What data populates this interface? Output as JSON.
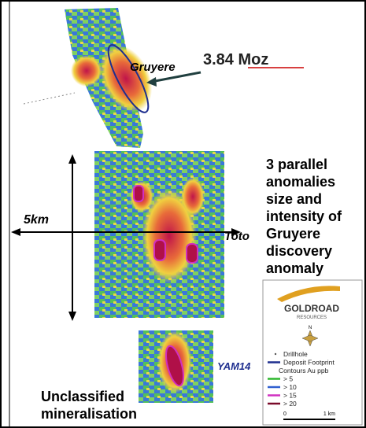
{
  "map": {
    "labels": {
      "deposit": "Gruyere",
      "resource": "3.84 Moz",
      "distance": "5km",
      "toto": "Toto",
      "yam": "YAM14"
    },
    "note": [
      "3 parallel",
      "anomalies",
      "size and",
      "intensity of",
      "Gruyere",
      "discovery",
      "anomaly"
    ],
    "bottom_note": [
      "Unclassified",
      "mineralisation"
    ],
    "logo": {
      "name": "GOLDROAD",
      "sub": "RESOURCES",
      "north": "N"
    },
    "legend": [
      {
        "label": "Drillhole",
        "color": "#555555",
        "kind": "dot"
      },
      {
        "label": "Deposit Footprint",
        "color": "#1f2f8f",
        "kind": "line"
      },
      {
        "label": "Contours Au ppb",
        "color": null,
        "kind": "text"
      },
      {
        "label": "> 5",
        "color": "#2db82d",
        "kind": "line"
      },
      {
        "label": "> 10",
        "color": "#2f5fd0",
        "kind": "line"
      },
      {
        "label": "> 15",
        "color": "#d030c0",
        "kind": "line"
      },
      {
        "label": "> 20",
        "color": "#7a0a2a",
        "kind": "line"
      }
    ],
    "scale": [
      "0",
      "1 km"
    ]
  }
}
